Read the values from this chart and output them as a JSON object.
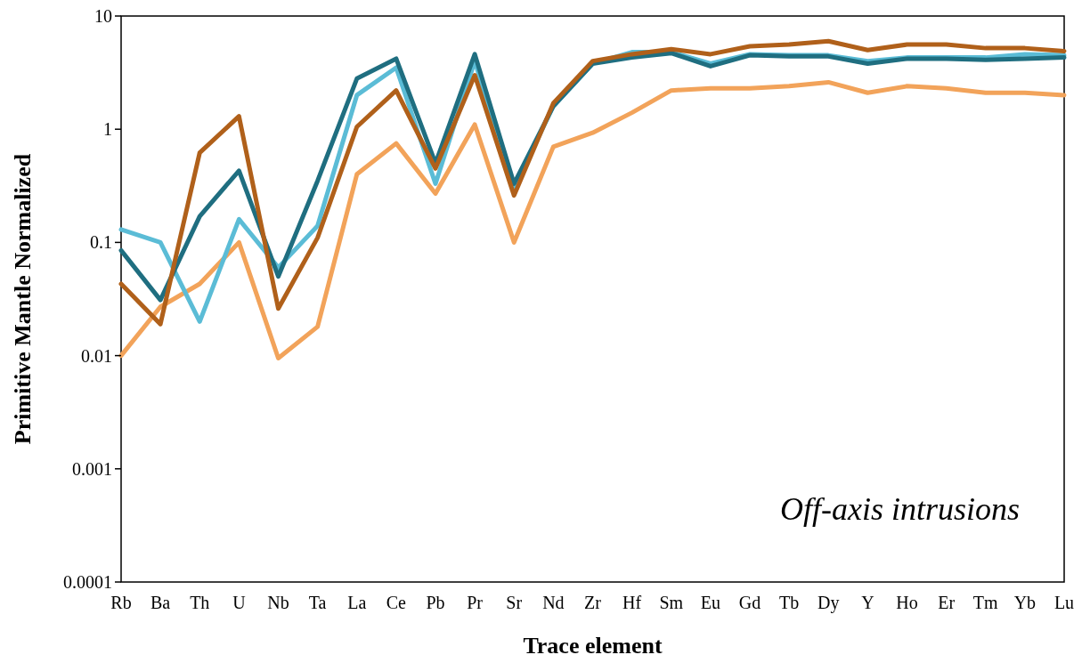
{
  "chart_data": {
    "type": "line",
    "xlabel": "Trace element",
    "ylabel": "Primitive Mantle Normalized",
    "log": true,
    "ylim": [
      0.0001,
      10
    ],
    "yticks": [
      0.0001,
      0.001,
      0.01,
      0.1,
      1,
      10
    ],
    "grid": false,
    "marker": "none",
    "line_style": "solid",
    "annotations": [
      "Off-axis intrusions"
    ],
    "categories": [
      "Rb",
      "Ba",
      "Th",
      "U",
      "Nb",
      "Ta",
      "La",
      "Ce",
      "Pb",
      "Pr",
      "Sr",
      "Nd",
      "Zr",
      "Hf",
      "Sm",
      "Eu",
      "Gd",
      "Tb",
      "Dy",
      "Y",
      "Ho",
      "Er",
      "Tm",
      "Yb",
      "Lu"
    ],
    "series": [
      {
        "color": "#f2a35a",
        "values": [
          0.01,
          0.027,
          0.043,
          0.1,
          0.0095,
          0.018,
          0.4,
          0.75,
          0.27,
          1.1,
          0.1,
          0.7,
          0.93,
          1.4,
          2.2,
          2.3,
          2.3,
          2.4,
          2.6,
          2.1,
          2.4,
          2.3,
          2.1,
          2.1,
          2.0
        ]
      },
      {
        "color": "#5bbcd6",
        "values": [
          0.13,
          0.1,
          0.02,
          0.16,
          0.06,
          0.14,
          2.0,
          3.5,
          0.33,
          4.0,
          0.3,
          1.6,
          3.8,
          4.8,
          4.8,
          3.8,
          4.6,
          4.5,
          4.5,
          4.0,
          4.3,
          4.3,
          4.3,
          4.6,
          4.5
        ]
      },
      {
        "color": "#1f6e80",
        "values": [
          0.085,
          0.031,
          0.17,
          0.43,
          0.05,
          0.35,
          2.8,
          4.2,
          0.5,
          4.6,
          0.33,
          1.6,
          3.8,
          4.3,
          4.7,
          3.6,
          4.5,
          4.4,
          4.4,
          3.8,
          4.2,
          4.2,
          4.1,
          4.2,
          4.3
        ]
      },
      {
        "color": "#b0601a",
        "values": [
          0.043,
          0.019,
          0.62,
          1.3,
          0.026,
          0.11,
          1.05,
          2.2,
          0.45,
          3.0,
          0.26,
          1.7,
          4.0,
          4.6,
          5.1,
          4.6,
          5.4,
          5.6,
          6.0,
          5.0,
          5.6,
          5.6,
          5.2,
          5.2,
          4.9
        ]
      }
    ]
  }
}
